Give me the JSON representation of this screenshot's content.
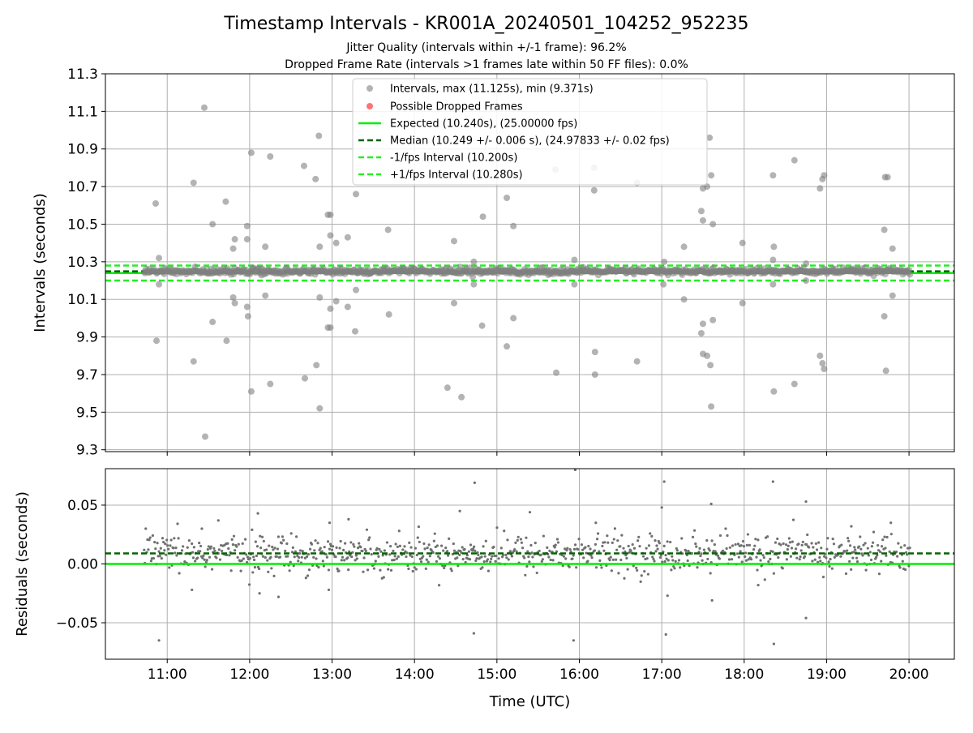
{
  "chart_data": [
    {
      "type": "scatter",
      "title": "Timestamp Intervals - KR001A_20240501_104252_952235",
      "subtitle_lines": [
        "Jitter Quality (intervals within +/-1 frame): 96.2%",
        "Dropped Frame Rate (intervals >1 frames late within 50 FF files): 0.0%"
      ],
      "ylabel": "Intervals (seconds)",
      "ylim": [
        9.29,
        11.3
      ],
      "yticks": [
        "11.3",
        "11.1",
        "10.9",
        "10.7",
        "10.5",
        "10.3",
        "10.1",
        "9.9",
        "9.7",
        "9.5",
        "9.3"
      ],
      "xlim_hours": [
        10.25,
        20.55
      ],
      "xticks": [
        "11:00",
        "12:00",
        "13:00",
        "14:00",
        "15:00",
        "16:00",
        "17:00",
        "18:00",
        "19:00",
        "20:00"
      ],
      "grid": true,
      "legend_position": "upper center",
      "legend": [
        "Intervals, max (11.125s), min (9.371s)",
        "Possible Dropped Frames",
        "Expected (10.240s), (25.00000 fps)",
        "Median (10.249 +/- 0.006 s), (24.97833 +/- 0.02 fps)",
        "-1/fps Interval (10.200s)",
        "+1/fps Interval (10.280s)"
      ],
      "colors": {
        "intervals": "#808080",
        "dropped": "#ff0000",
        "expected": "#00ee00",
        "median": "#006400",
        "fps_interval": "#22ee22"
      },
      "reference_lines": {
        "expected": 10.24,
        "median": 10.249,
        "minus_fps": 10.2,
        "plus_fps": 10.28
      },
      "series": [
        {
          "name": "Intervals, max (11.125s), min (9.371s)",
          "points": [
            [
              10.86,
              10.61
            ],
            [
              10.87,
              9.88
            ],
            [
              10.9,
              10.32
            ],
            [
              10.9,
              10.18
            ],
            [
              11.32,
              10.72
            ],
            [
              11.32,
              9.77
            ],
            [
              11.45,
              11.12
            ],
            [
              11.46,
              9.37
            ],
            [
              11.55,
              10.5
            ],
            [
              11.55,
              9.98
            ],
            [
              11.71,
              10.62
            ],
            [
              11.72,
              9.88
            ],
            [
              11.8,
              10.37
            ],
            [
              11.82,
              10.42
            ],
            [
              11.8,
              10.11
            ],
            [
              11.82,
              10.08
            ],
            [
              11.97,
              10.49
            ],
            [
              11.97,
              10.42
            ],
            [
              11.97,
              10.06
            ],
            [
              11.98,
              10.01
            ],
            [
              12.02,
              10.88
            ],
            [
              12.02,
              9.61
            ],
            [
              12.19,
              10.38
            ],
            [
              12.19,
              10.12
            ],
            [
              12.25,
              10.86
            ],
            [
              12.25,
              9.65
            ],
            [
              12.66,
              10.81
            ],
            [
              12.67,
              9.68
            ],
            [
              12.8,
              10.74
            ],
            [
              12.81,
              9.75
            ],
            [
              12.84,
              10.97
            ],
            [
              12.85,
              10.38
            ],
            [
              12.85,
              10.11
            ],
            [
              12.85,
              9.52
            ],
            [
              12.95,
              10.55
            ],
            [
              12.98,
              10.55
            ],
            [
              12.98,
              10.44
            ],
            [
              12.98,
              10.05
            ],
            [
              12.95,
              9.95
            ],
            [
              12.98,
              9.95
            ],
            [
              13.05,
              10.4
            ],
            [
              13.05,
              10.09
            ],
            [
              13.19,
              10.43
            ],
            [
              13.19,
              10.06
            ],
            [
              13.29,
              10.66
            ],
            [
              13.29,
              10.15
            ],
            [
              13.28,
              9.93
            ],
            [
              13.68,
              10.47
            ],
            [
              13.69,
              10.02
            ],
            [
              14.4,
              9.63
            ],
            [
              14.48,
              10.41
            ],
            [
              14.48,
              10.08
            ],
            [
              14.57,
              9.58
            ],
            [
              14.72,
              10.3
            ],
            [
              14.72,
              10.18
            ],
            [
              14.83,
              10.54
            ],
            [
              14.82,
              9.96
            ],
            [
              15.12,
              10.64
            ],
            [
              15.12,
              9.85
            ],
            [
              15.2,
              10.49
            ],
            [
              15.2,
              10.0
            ],
            [
              15.71,
              10.79
            ],
            [
              15.72,
              9.71
            ],
            [
              15.94,
              10.31
            ],
            [
              15.94,
              10.18
            ],
            [
              16.18,
              10.8
            ],
            [
              16.18,
              10.68
            ],
            [
              16.19,
              9.82
            ],
            [
              16.19,
              9.7
            ],
            [
              16.7,
              10.72
            ],
            [
              16.7,
              9.77
            ],
            [
              17.03,
              10.3
            ],
            [
              17.02,
              10.18
            ],
            [
              17.27,
              10.38
            ],
            [
              17.27,
              10.1
            ],
            [
              17.48,
              10.57
            ],
            [
              17.5,
              10.52
            ],
            [
              17.5,
              10.69
            ],
            [
              17.55,
              10.7
            ],
            [
              17.58,
              10.96
            ],
            [
              17.6,
              10.76
            ],
            [
              17.62,
              10.5
            ],
            [
              17.48,
              9.92
            ],
            [
              17.5,
              9.97
            ],
            [
              17.5,
              9.81
            ],
            [
              17.55,
              9.8
            ],
            [
              17.59,
              9.75
            ],
            [
              17.6,
              9.53
            ],
            [
              17.62,
              9.99
            ],
            [
              17.98,
              10.4
            ],
            [
              17.98,
              10.08
            ],
            [
              18.35,
              10.76
            ],
            [
              18.36,
              10.38
            ],
            [
              18.35,
              10.31
            ],
            [
              18.35,
              10.18
            ],
            [
              18.36,
              9.61
            ],
            [
              18.61,
              10.84
            ],
            [
              18.61,
              9.65
            ],
            [
              18.92,
              10.69
            ],
            [
              18.95,
              10.74
            ],
            [
              18.97,
              10.76
            ],
            [
              18.92,
              9.8
            ],
            [
              18.95,
              9.76
            ],
            [
              18.97,
              9.73
            ],
            [
              19.71,
              10.75
            ],
            [
              19.7,
              10.47
            ],
            [
              19.7,
              10.01
            ],
            [
              19.72,
              9.72
            ],
            [
              19.8,
              10.37
            ],
            [
              19.8,
              10.12
            ],
            [
              19.74,
              10.75
            ],
            [
              18.75,
              10.29
            ],
            [
              18.75,
              10.2
            ]
          ]
        },
        {
          "name": "Possible Dropped Frames",
          "points": []
        }
      ]
    },
    {
      "type": "scatter",
      "ylabel": "Residuals (seconds)",
      "xlabel": "Time (UTC)",
      "ylim": [
        -0.081,
        0.081
      ],
      "yticks": [
        "0.05",
        "0.00",
        "−0.05"
      ],
      "xlim_hours": [
        10.25,
        20.55
      ],
      "xticks": [
        "11:00",
        "12:00",
        "13:00",
        "14:00",
        "15:00",
        "16:00",
        "17:00",
        "18:00",
        "19:00",
        "20:00"
      ],
      "grid": true,
      "colors": {
        "points": "#707070",
        "zero_line": "#00ee00",
        "median_line": "#006400"
      },
      "reference_lines": {
        "zero": 0.0,
        "median_offset": 0.009
      },
      "series": [
        {
          "name": "",
          "points": [
            [
              10.9,
              -0.065
            ],
            [
              11.42,
              0.03
            ],
            [
              11.62,
              0.037
            ],
            [
              12.1,
              0.043
            ],
            [
              12.12,
              -0.025
            ],
            [
              12.35,
              -0.028
            ],
            [
              12.97,
              0.035
            ],
            [
              12.96,
              -0.022
            ],
            [
              14.73,
              0.069
            ],
            [
              14.72,
              -0.059
            ],
            [
              15.95,
              0.08
            ],
            [
              15.93,
              -0.065
            ],
            [
              17.03,
              0.07
            ],
            [
              17.05,
              -0.06
            ],
            [
              17.0,
              0.048
            ],
            [
              17.07,
              -0.027
            ],
            [
              17.6,
              0.051
            ],
            [
              17.61,
              -0.031
            ],
            [
              18.35,
              0.07
            ],
            [
              18.36,
              -0.068
            ],
            [
              18.75,
              0.053
            ],
            [
              18.75,
              -0.046
            ],
            [
              14.55,
              0.045
            ],
            [
              16.2,
              0.035
            ],
            [
              15.4,
              0.044
            ],
            [
              13.2,
              0.038
            ],
            [
              11.3,
              -0.022
            ],
            [
              19.3,
              0.032
            ],
            [
              19.78,
              0.035
            ],
            [
              18.17,
              -0.018
            ]
          ]
        }
      ]
    }
  ]
}
